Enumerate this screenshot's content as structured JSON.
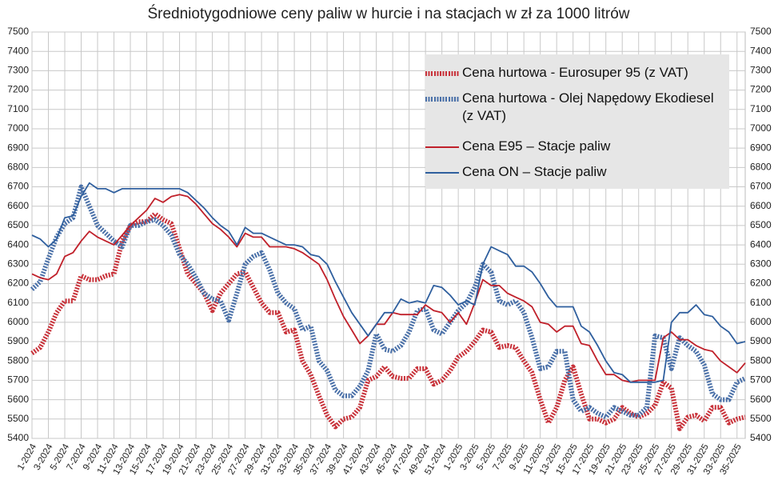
{
  "chart_data": {
    "type": "line",
    "title": "Średniotygodniowe ceny paliw w hurcie i na stacjach w zł za 1000 litrów",
    "categories": [
      "1-2024",
      null,
      "3-2024",
      null,
      "5-2024",
      null,
      "7-2024",
      null,
      "9-2024",
      null,
      "11-2024",
      null,
      "13-2024",
      null,
      "15-2024",
      null,
      "17-2024",
      null,
      "19-2024",
      null,
      "21-2024",
      null,
      "23-2024",
      null,
      "25-2024",
      null,
      "27-2024",
      null,
      "29-2024",
      null,
      "31-2024",
      null,
      "33-2024",
      null,
      "35-2024",
      null,
      "37-2024",
      null,
      "39-2024",
      null,
      "41-2024",
      null,
      "43-2024",
      null,
      "45-2024",
      null,
      "47-2024",
      null,
      "49-2024",
      null,
      "51-2024",
      null,
      "1-2025",
      null,
      "3-2025",
      null,
      "5-2025",
      null,
      "7-2025",
      null,
      "9-2025",
      null,
      "11-2025",
      null,
      "13-2025",
      null,
      "15-2025",
      null,
      "17-2025",
      null,
      "19-2025",
      null,
      "21-2025",
      null,
      "23-2025",
      null,
      "25-2025",
      null,
      "27-2025",
      null,
      "29-2025",
      null,
      "31-2025",
      null,
      "33-2025",
      null,
      "35-2025",
      null
    ],
    "series": [
      {
        "name": "Cena hurtowa  - Eurosuper 95 (z VAT)",
        "color": "#c8323a",
        "dashed": true,
        "values": [
          5840,
          5870,
          5950,
          6050,
          6110,
          6110,
          6240,
          6220,
          6220,
          6240,
          6250,
          6420,
          6500,
          6520,
          6520,
          6560,
          6530,
          6510,
          6380,
          6250,
          6200,
          6150,
          6060,
          6150,
          6200,
          6250,
          6260,
          6180,
          6100,
          6050,
          6050,
          5950,
          5960,
          5800,
          5730,
          5620,
          5520,
          5460,
          5500,
          5510,
          5560,
          5700,
          5720,
          5770,
          5720,
          5710,
          5710,
          5760,
          5760,
          5680,
          5700,
          5750,
          5820,
          5850,
          5900,
          5960,
          5950,
          5870,
          5880,
          5870,
          5800,
          5740,
          5600,
          5480,
          5560,
          5700,
          5770,
          5630,
          5500,
          5500,
          5480,
          5500,
          5560,
          5530,
          5510,
          5530,
          5570,
          5690,
          5660,
          5450,
          5510,
          5520,
          5490,
          5560,
          5560,
          5480,
          5500,
          5510
        ]
      },
      {
        "name": "Cena hurtowa - Olej Napędowy Ekodiesel (z VAT)",
        "color": "#4a70a8",
        "dashed": true,
        "values": [
          6170,
          6210,
          6330,
          6440,
          6510,
          6540,
          6700,
          6600,
          6500,
          6460,
          6420,
          6390,
          6500,
          6500,
          6520,
          6530,
          6500,
          6450,
          6350,
          6300,
          6230,
          6150,
          6120,
          6110,
          6010,
          6150,
          6300,
          6340,
          6360,
          6270,
          6150,
          6100,
          6070,
          5960,
          5980,
          5800,
          5750,
          5650,
          5620,
          5620,
          5670,
          5750,
          5940,
          5860,
          5850,
          5880,
          5950,
          6060,
          6070,
          5960,
          5940,
          6000,
          6060,
          6100,
          6180,
          6300,
          6260,
          6110,
          6090,
          6110,
          6050,
          5920,
          5760,
          5770,
          5850,
          5850,
          5600,
          5540,
          5560,
          5530,
          5510,
          5560,
          5540,
          5520,
          5520,
          5560,
          5930,
          5920,
          5760,
          5920,
          5880,
          5850,
          5780,
          5630,
          5600,
          5600,
          5690,
          5710
        ]
      },
      {
        "name": "Cena E95 – Stacje paliw",
        "color": "#c0202a",
        "dashed": false,
        "values": [
          6250,
          6230,
          6220,
          6250,
          6340,
          6360,
          6420,
          6470,
          6440,
          6420,
          6400,
          6450,
          6500,
          6540,
          6580,
          6640,
          6620,
          6650,
          6660,
          6650,
          6610,
          6560,
          6510,
          6480,
          6440,
          6390,
          6460,
          6440,
          6440,
          6390,
          6390,
          6390,
          6380,
          6360,
          6330,
          6300,
          6220,
          6120,
          6030,
          5960,
          5890,
          5930,
          5990,
          5990,
          6050,
          6040,
          6040,
          6040,
          6090,
          6060,
          6050,
          6000,
          6050,
          5990,
          6100,
          6220,
          6190,
          6190,
          6150,
          6130,
          6110,
          6080,
          6000,
          5990,
          5950,
          5980,
          5980,
          5890,
          5880,
          5800,
          5730,
          5730,
          5700,
          5690,
          5700,
          5700,
          5700,
          5920,
          5950,
          5910,
          5910,
          5880,
          5860,
          5850,
          5800,
          5770,
          5740,
          5790
        ]
      },
      {
        "name": "Cena ON – Stacje paliw",
        "color": "#2f5f9e",
        "dashed": false,
        "values": [
          6450,
          6430,
          6390,
          6430,
          6540,
          6550,
          6650,
          6720,
          6690,
          6690,
          6670,
          6690,
          6690,
          6690,
          6690,
          6690,
          6690,
          6690,
          6690,
          6670,
          6630,
          6590,
          6540,
          6500,
          6470,
          6400,
          6490,
          6460,
          6460,
          6440,
          6420,
          6400,
          6400,
          6390,
          6350,
          6340,
          6300,
          6210,
          6130,
          6050,
          5990,
          5930,
          5990,
          6050,
          6050,
          6120,
          6100,
          6110,
          6100,
          6190,
          6180,
          6140,
          6090,
          6110,
          6090,
          6300,
          6390,
          6370,
          6350,
          6290,
          6290,
          6260,
          6200,
          6130,
          6080,
          6080,
          6080,
          5980,
          5950,
          5880,
          5800,
          5740,
          5730,
          5690,
          5690,
          5690,
          5690,
          5700,
          6000,
          6050,
          6050,
          6090,
          6040,
          6030,
          5980,
          5950,
          5890,
          5900
        ]
      }
    ],
    "ylim": [
      5400,
      7500
    ],
    "yticks": [
      5400,
      5500,
      5600,
      5700,
      5800,
      5900,
      6000,
      6100,
      6200,
      6300,
      6400,
      6500,
      6600,
      6700,
      6800,
      6900,
      7000,
      7100,
      7200,
      7300,
      7400,
      7500
    ],
    "grid": true,
    "legend": "top-right"
  }
}
